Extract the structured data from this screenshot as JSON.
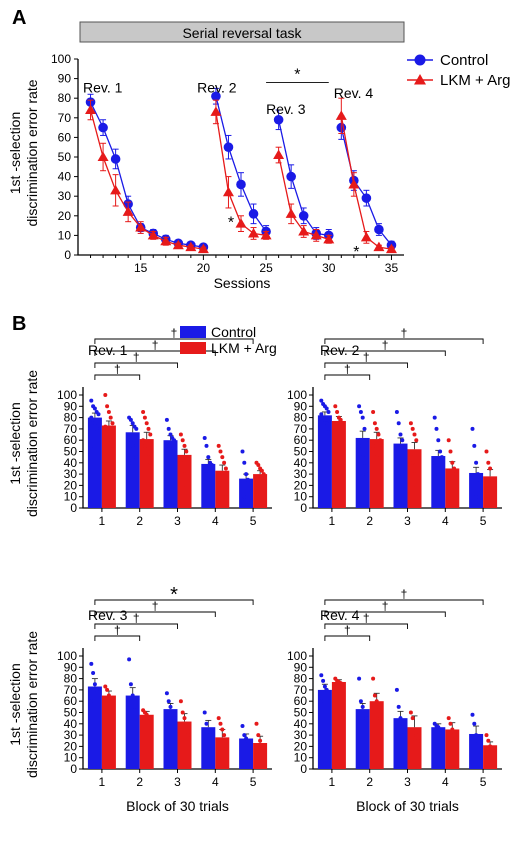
{
  "panel_a_letter": "A",
  "panel_b_letter": "B",
  "colors": {
    "control": "#1a1ae6",
    "lkm": "#e61a1a",
    "banner_fill": "#c8c8c8"
  },
  "chart_data": [
    {
      "id": "A",
      "type": "line",
      "banner": "Serial reversal task",
      "xlabel": "Sessions",
      "ylabel": [
        "1st -selection",
        "discrimination error rate"
      ],
      "xlim": [
        10,
        36
      ],
      "ylim": [
        0,
        100
      ],
      "xticks": [
        15,
        20,
        25,
        30,
        35
      ],
      "yticks": [
        0,
        10,
        20,
        30,
        40,
        50,
        60,
        70,
        80,
        90,
        100
      ],
      "legend_position": "top-right",
      "series": [
        {
          "name": "Control",
          "color": "control",
          "marker": "circle",
          "segments": [
            {
              "x": [
                11,
                12,
                13,
                14,
                15,
                16,
                17,
                18,
                19,
                20
              ],
              "y": [
                78,
                65,
                49,
                26,
                14,
                11,
                8,
                6,
                5,
                4
              ],
              "err": [
                4,
                4,
                5,
                4,
                2,
                2,
                2,
                1,
                1,
                1
              ]
            },
            {
              "x": [
                21,
                22,
                23,
                24,
                25
              ],
              "y": [
                81,
                55,
                36,
                21,
                12
              ],
              "err": [
                4,
                6,
                6,
                5,
                3
              ]
            },
            {
              "x": [
                26,
                27,
                28,
                29,
                30
              ],
              "y": [
                69,
                40,
                20,
                11,
                10
              ],
              "err": [
                5,
                6,
                4,
                3,
                3
              ]
            },
            {
              "x": [
                31,
                32,
                33,
                34,
                35
              ],
              "y": [
                65,
                38,
                29,
                13,
                5
              ],
              "err": [
                6,
                5,
                4,
                3,
                2
              ]
            }
          ]
        },
        {
          "name": "LKM + Arg",
          "color": "lkm",
          "marker": "triangle",
          "segments": [
            {
              "x": [
                11,
                12,
                13,
                14,
                15,
                16,
                17,
                18,
                19,
                20
              ],
              "y": [
                74,
                50,
                33,
                22,
                14,
                10,
                7,
                5,
                4,
                3
              ],
              "err": [
                5,
                7,
                8,
                5,
                3,
                2,
                2,
                1,
                1,
                1
              ]
            },
            {
              "x": [
                21,
                22,
                23,
                24,
                25
              ],
              "y": [
                73,
                32,
                16,
                11,
                10
              ],
              "err": [
                6,
                8,
                4,
                3,
                2
              ]
            },
            {
              "x": [
                26,
                27,
                28,
                29,
                30
              ],
              "y": [
                51,
                21,
                12,
                10,
                8
              ],
              "err": [
                4,
                5,
                3,
                3,
                2
              ]
            },
            {
              "x": [
                31,
                32,
                33,
                34,
                35
              ],
              "y": [
                71,
                36,
                9,
                4,
                3
              ],
              "err": [
                9,
                6,
                3,
                1,
                1
              ]
            }
          ]
        }
      ],
      "annotations": [
        {
          "text": "Rev. 1",
          "x": 10.4,
          "y": 83
        },
        {
          "text": "Rev. 2",
          "x": 19.5,
          "y": 83
        },
        {
          "text": "Rev. 3",
          "x": 25,
          "y": 72
        },
        {
          "text": "Rev. 4",
          "x": 30.4,
          "y": 80
        }
      ],
      "stars": [
        {
          "text": "*",
          "x": 22.2,
          "y": 17
        },
        {
          "text": "*",
          "x": 32.2,
          "y": 2
        }
      ],
      "sig_bracket": {
        "text": "*",
        "x1": 25,
        "x2": 30,
        "y": 88
      }
    },
    {
      "id": "B1",
      "type": "bar",
      "title": "Rev. 1",
      "categories": [
        "1",
        "2",
        "3",
        "4",
        "5"
      ],
      "xlabel": "",
      "ylabel": [
        "1st -selection",
        "discrimination error rate"
      ],
      "ylim": [
        0,
        100
      ],
      "yticks": [
        0,
        10,
        20,
        30,
        40,
        50,
        60,
        70,
        80,
        90,
        100
      ],
      "legend": [
        "Control",
        "LKM + Arg"
      ],
      "legend_position": "top-center",
      "series": [
        {
          "name": "Control",
          "color": "control",
          "values": [
            80,
            67,
            60,
            39,
            26
          ],
          "err": [
            4,
            6,
            4,
            4,
            4
          ],
          "points": [
            [
              95,
              90,
              88,
              85,
              83,
              80,
              78,
              75,
              70,
              65,
              55,
              50
            ],
            [
              80,
              78,
              75,
              72,
              70,
              65,
              60,
              55,
              50,
              45,
              40
            ],
            [
              78,
              70,
              65,
              62,
              60,
              58,
              55,
              52,
              50
            ],
            [
              62,
              55,
              45,
              40,
              38,
              35,
              30,
              25,
              20,
              15
            ],
            [
              50,
              40,
              30,
              25,
              20,
              15,
              10,
              5
            ]
          ]
        },
        {
          "name": "LKM + Arg",
          "color": "lkm",
          "values": [
            73,
            61,
            47,
            33,
            30
          ],
          "err": [
            4,
            6,
            5,
            5,
            3
          ],
          "points": [
            [
              100,
              90,
              85,
              80,
              75,
              72,
              70,
              65,
              60,
              55,
              50
            ],
            [
              85,
              80,
              75,
              70,
              65,
              60,
              55,
              50,
              45,
              40
            ],
            [
              65,
              60,
              55,
              50,
              45,
              40,
              35,
              30,
              20,
              15
            ],
            [
              55,
              50,
              45,
              40,
              35,
              30,
              25,
              20,
              15,
              10,
              5
            ],
            [
              40,
              38,
              35,
              33,
              30,
              25,
              20,
              15
            ]
          ]
        }
      ],
      "brackets": [
        {
          "to": 2,
          "label": "†"
        },
        {
          "to": 3,
          "label": "†"
        },
        {
          "to": 4,
          "label": "†"
        },
        {
          "to": 5,
          "label": "†"
        }
      ]
    },
    {
      "id": "B2",
      "type": "bar",
      "title": "Rev. 2",
      "categories": [
        "1",
        "2",
        "3",
        "4",
        "5"
      ],
      "xlabel": "",
      "ylim": [
        0,
        100
      ],
      "yticks": [
        0,
        10,
        20,
        30,
        40,
        50,
        60,
        70,
        80,
        90,
        100
      ],
      "series": [
        {
          "name": "Control",
          "color": "control",
          "values": [
            82,
            62,
            57,
            46,
            31
          ],
          "err": [
            3,
            6,
            5,
            5,
            5
          ],
          "points": [
            [
              95,
              92,
              90,
              88,
              85,
              83,
              80,
              78,
              75,
              70,
              65
            ],
            [
              90,
              85,
              80,
              70,
              60,
              55,
              50,
              45,
              40,
              30
            ],
            [
              85,
              75,
              65,
              60,
              55,
              50,
              45,
              40,
              30
            ],
            [
              80,
              70,
              60,
              50,
              45,
              40,
              35,
              30,
              20
            ],
            [
              70,
              55,
              40,
              30,
              25,
              20,
              15,
              10
            ]
          ]
        },
        {
          "name": "LKM + Arg",
          "color": "lkm",
          "values": [
            77,
            61,
            52,
            35,
            28
          ],
          "err": [
            4,
            6,
            6,
            6,
            6
          ],
          "points": [
            [
              90,
              85,
              80,
              78,
              75,
              70,
              65,
              60
            ],
            [
              85,
              75,
              70,
              65,
              60,
              55,
              50,
              45
            ],
            [
              75,
              70,
              65,
              60,
              50,
              45,
              40,
              30,
              20
            ],
            [
              60,
              50,
              40,
              35,
              30,
              25,
              20
            ],
            [
              50,
              40,
              35,
              25,
              20,
              15,
              10,
              5
            ]
          ]
        }
      ],
      "brackets": [
        {
          "to": 2,
          "label": "†"
        },
        {
          "to": 3,
          "label": "†"
        },
        {
          "to": 4,
          "label": "†"
        },
        {
          "to": 5,
          "label": "†"
        }
      ]
    },
    {
      "id": "B3",
      "type": "bar",
      "title": "Rev. 3",
      "categories": [
        "1",
        "2",
        "3",
        "4",
        "5"
      ],
      "xlabel": "Block of 30 trials",
      "ylabel": [
        "1st -selection",
        "discrimination error rate"
      ],
      "ylim": [
        0,
        100
      ],
      "yticks": [
        0,
        10,
        20,
        30,
        40,
        50,
        60,
        70,
        80,
        90,
        100
      ],
      "series": [
        {
          "name": "Control",
          "color": "control",
          "values": [
            73,
            65,
            53,
            37,
            27
          ],
          "err": [
            7,
            7,
            5,
            6,
            4
          ],
          "points": [
            [
              93,
              85,
              75,
              70,
              65,
              60
            ],
            [
              97,
              75,
              65,
              55,
              50
            ],
            [
              67,
              60,
              55,
              50,
              45
            ],
            [
              50,
              40,
              35,
              30,
              20
            ],
            [
              38,
              30,
              27,
              25,
              20
            ]
          ]
        },
        {
          "name": "LKM + Arg",
          "color": "lkm",
          "values": [
            65,
            48,
            42,
            28,
            23
          ],
          "err": [
            4,
            3,
            7,
            7,
            6
          ],
          "points": [
            [
              73,
              70,
              65,
              62,
              60
            ],
            [
              52,
              50,
              48,
              45,
              45
            ],
            [
              60,
              50,
              45,
              40,
              30
            ],
            [
              45,
              40,
              35,
              30,
              20,
              10
            ],
            [
              40,
              30,
              25,
              20,
              15
            ]
          ]
        }
      ],
      "brackets": [
        {
          "to": 2,
          "label": "†"
        },
        {
          "to": 3,
          "label": "†"
        },
        {
          "to": 4,
          "label": "†"
        },
        {
          "to": 5,
          "label": "*"
        }
      ]
    },
    {
      "id": "B4",
      "type": "bar",
      "title": "Rev. 4",
      "categories": [
        "1",
        "2",
        "3",
        "4",
        "5"
      ],
      "xlabel": "Block of 30 trials",
      "ylim": [
        0,
        100
      ],
      "yticks": [
        0,
        10,
        20,
        30,
        40,
        50,
        60,
        70,
        80,
        90,
        100
      ],
      "series": [
        {
          "name": "Control",
          "color": "control",
          "values": [
            70,
            53,
            45,
            37,
            31
          ],
          "err": [
            5,
            5,
            6,
            3,
            7
          ],
          "points": [
            [
              83,
              78,
              73,
              70,
              65,
              60
            ],
            [
              80,
              60,
              55,
              50,
              45
            ],
            [
              70,
              55,
              45,
              40,
              30
            ],
            [
              40,
              38,
              37,
              35,
              35
            ],
            [
              48,
              40,
              30,
              25,
              15
            ]
          ]
        },
        {
          "name": "LKM + Arg",
          "color": "lkm",
          "values": [
            77,
            60,
            37,
            35,
            21
          ],
          "err": [
            2,
            7,
            10,
            6,
            3
          ],
          "points": [
            [
              80,
              78,
              77,
              76,
              75
            ],
            [
              80,
              65,
              60,
              55,
              45
            ],
            [
              50,
              45,
              35,
              30,
              25
            ],
            [
              45,
              40,
              35,
              30,
              28
            ],
            [
              30,
              25,
              20,
              18,
              12
            ]
          ]
        }
      ],
      "brackets": [
        {
          "to": 2,
          "label": "†"
        },
        {
          "to": 3,
          "label": "†"
        },
        {
          "to": 4,
          "label": "†"
        },
        {
          "to": 5,
          "label": "†"
        }
      ]
    }
  ]
}
